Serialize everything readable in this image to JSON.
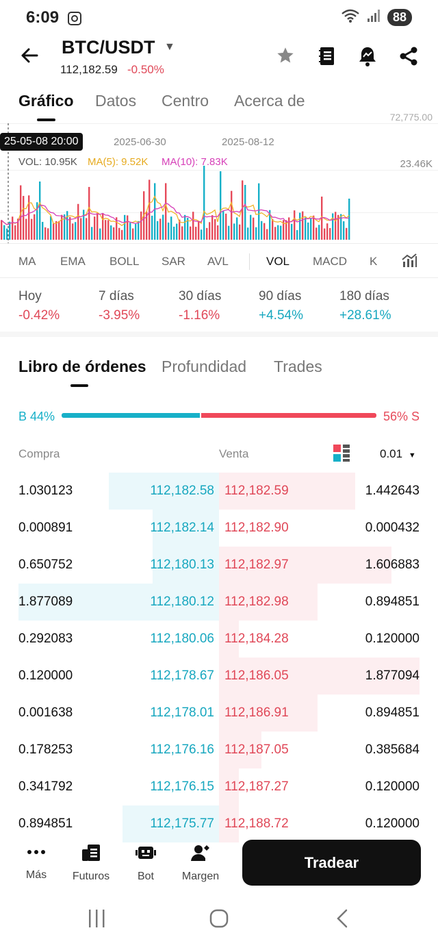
{
  "status_bar": {
    "time": "6:09",
    "battery": "88"
  },
  "header": {
    "pair": "BTC/USDT",
    "price": "112,182.59",
    "change": "-0.50%",
    "icons": [
      "back-arrow-icon",
      "star-icon",
      "notebook-icon",
      "alert-icon",
      "share-icon"
    ]
  },
  "tabs": [
    "Gráfico",
    "Datos",
    "Centro",
    "Acerca de"
  ],
  "chart": {
    "tooltip_date": "25-05-08 20:00",
    "top_right_clip": "72,775.00",
    "dates": [
      "2025-06-30",
      "2025-08-12"
    ],
    "vol_label": "VOL: 10.95K",
    "ma5_label": "MA(5): 9.52K",
    "ma10_label": "MA(10): 7.83K",
    "axis_max": "23.46K",
    "colors": {
      "up": "#17b0c8",
      "down": "#e64a5a",
      "ma5": "#f0b429",
      "ma10": "#d63fb8"
    }
  },
  "indicators": [
    "MA",
    "EMA",
    "BOLL",
    "SAR",
    "AVL",
    "VOL",
    "MACD",
    "K"
  ],
  "periods": [
    {
      "label": "Hoy",
      "value": "-0.42%",
      "dir": "down"
    },
    {
      "label": "7 días",
      "value": "-3.95%",
      "dir": "down"
    },
    {
      "label": "30 días",
      "value": "-1.16%",
      "dir": "down"
    },
    {
      "label": "90 días",
      "value": "+4.54%",
      "dir": "up"
    },
    {
      "label": "180 días",
      "value": "+28.61%",
      "dir": "up"
    }
  ],
  "orderbook": {
    "tabs": [
      "Libro de órdenes",
      "Profundidad",
      "Trades"
    ],
    "buy_ratio": "B 44%",
    "sell_ratio": "56% S",
    "buy_percent": 44,
    "col_buy": "Compra",
    "col_sell": "Venta",
    "precision": "0.01",
    "rows": [
      {
        "bq": "1.030123",
        "bp": "112,182.58",
        "sp": "112,182.59",
        "sq": "1.442643",
        "bd": 0.55,
        "sd": 0.68
      },
      {
        "bq": "0.000891",
        "bp": "112,182.14",
        "sp": "112,182.90",
        "sq": "0.000432",
        "bd": 0.33,
        "sd": 0.0
      },
      {
        "bq": "0.650752",
        "bp": "112,180.13",
        "sp": "112,182.97",
        "sq": "1.606883",
        "bd": 0.33,
        "sd": 0.86
      },
      {
        "bq": "1.877089",
        "bp": "112,180.12",
        "sp": "112,182.98",
        "sq": "0.894851",
        "bd": 1.0,
        "sd": 0.49
      },
      {
        "bq": "0.292083",
        "bp": "112,180.06",
        "sp": "112,184.28",
        "sq": "0.120000",
        "bd": 0.0,
        "sd": 0.1
      },
      {
        "bq": "0.120000",
        "bp": "112,178.67",
        "sp": "112,186.05",
        "sq": "1.877094",
        "bd": 0.0,
        "sd": 1.0
      },
      {
        "bq": "0.001638",
        "bp": "112,178.01",
        "sp": "112,186.91",
        "sq": "0.894851",
        "bd": 0.0,
        "sd": 0.49
      },
      {
        "bq": "0.178253",
        "bp": "112,176.16",
        "sp": "112,187.05",
        "sq": "0.385684",
        "bd": 0.0,
        "sd": 0.21
      },
      {
        "bq": "0.341792",
        "bp": "112,176.15",
        "sp": "112,187.27",
        "sq": "0.120000",
        "bd": 0.0,
        "sd": 0.1
      },
      {
        "bq": "0.894851",
        "bp": "112,175.77",
        "sp": "112,188.72",
        "sq": "0.120000",
        "bd": 0.48,
        "sd": 0.1
      }
    ]
  },
  "bottom_nav": [
    {
      "label": "Más",
      "icon": "more-dots-icon"
    },
    {
      "label": "Futuros",
      "icon": "futures-icon"
    },
    {
      "label": "Bot",
      "icon": "bot-icon"
    },
    {
      "label": "Margen",
      "icon": "margin-icon"
    }
  ],
  "trade_button": "Tradear"
}
